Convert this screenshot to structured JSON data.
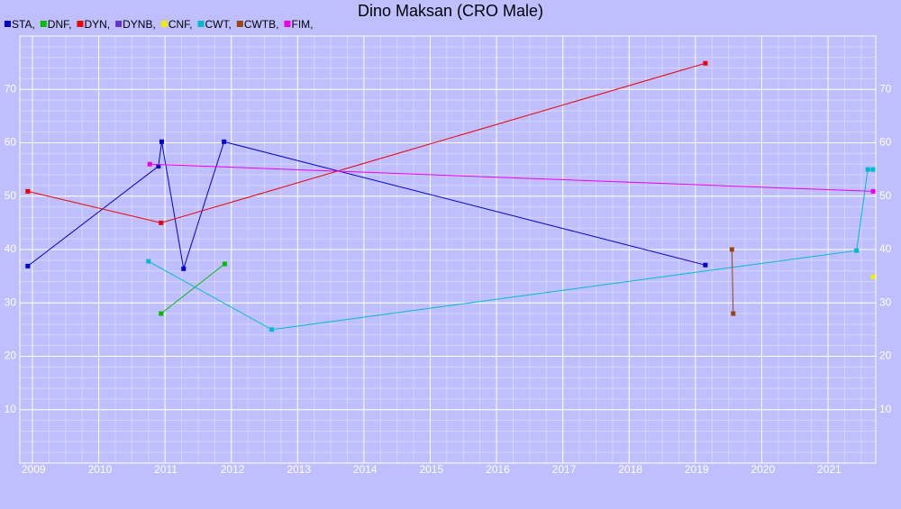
{
  "chart_data": {
    "type": "line",
    "title": "Dino Maksan (CRO Male)",
    "xlim": [
      2008.81,
      2021.72
    ],
    "xticks": [
      2009,
      2010,
      2011,
      2012,
      2013,
      2014,
      2015,
      2016,
      2017,
      2018,
      2019,
      2020,
      2021
    ],
    "ylim": [
      0,
      80
    ],
    "yticks": [
      10,
      20,
      30,
      40,
      50,
      60,
      70
    ],
    "grid": true,
    "series": [
      {
        "name": "STA,",
        "color": "#0000cc",
        "x": [
          2008.93,
          2010.9,
          2010.95,
          2011.28,
          2011.89,
          2019.15
        ],
        "values": [
          36.9,
          55.6,
          60.2,
          36.4,
          60.2,
          37.1
        ]
      },
      {
        "name": "DNF,",
        "color": "#00bb00",
        "x": [
          2010.94,
          2011.9
        ],
        "values": [
          28,
          37.3
        ]
      },
      {
        "name": "DYN,",
        "color": "#ee0000",
        "x": [
          2008.93,
          2010.94,
          2019.15
        ],
        "values": [
          50.9,
          45,
          74.9
        ]
      },
      {
        "name": "DYNB,",
        "color": "#6633cc",
        "x": [],
        "values": []
      },
      {
        "name": "CNF,",
        "color": "#eeee00",
        "x": [
          2021.68
        ],
        "values": [
          34.9
        ]
      },
      {
        "name": "CWT,",
        "color": "#00bbcc",
        "x": [
          2010.75,
          2012.61,
          2021.43,
          2021.6,
          2021.68
        ],
        "values": [
          37.8,
          25,
          39.8,
          55,
          55
        ]
      },
      {
        "name": "CWTB,",
        "color": "#994411",
        "x": [
          2019.55,
          2019.57
        ],
        "values": [
          40,
          28
        ]
      },
      {
        "name": "FIM,",
        "color": "#ee00ee",
        "x": [
          2010.77,
          2021.68
        ],
        "values": [
          56,
          50.9
        ]
      }
    ]
  }
}
